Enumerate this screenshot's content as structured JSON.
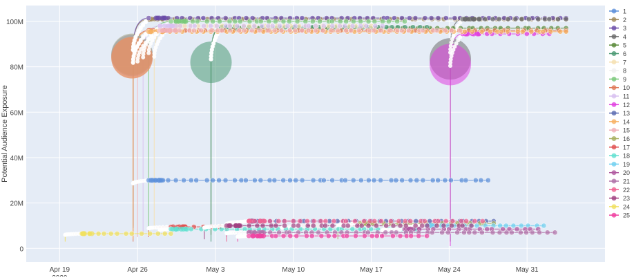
{
  "chart_data": {
    "type": "scatter",
    "title": "",
    "xlabel": "",
    "ylabel": "Potential Audience Exposure",
    "x_ticks": [
      {
        "date": "2020-04-19",
        "label": "Apr 19",
        "sub": "2020"
      },
      {
        "date": "2020-04-26",
        "label": "Apr 26",
        "sub": ""
      },
      {
        "date": "2020-05-03",
        "label": "May 3",
        "sub": ""
      },
      {
        "date": "2020-05-10",
        "label": "May 10",
        "sub": ""
      },
      {
        "date": "2020-05-17",
        "label": "May 17",
        "sub": ""
      },
      {
        "date": "2020-05-24",
        "label": "May 24",
        "sub": ""
      },
      {
        "date": "2020-05-31",
        "label": "May 31",
        "sub": ""
      }
    ],
    "xlim": [
      "2020-04-16",
      "2020-06-07"
    ],
    "ylim": [
      -6000000,
      107000000
    ],
    "y_ticks": [
      {
        "value": 0,
        "label": "0"
      },
      {
        "value": 20000000,
        "label": "20M"
      },
      {
        "value": 40000000,
        "label": "40M"
      },
      {
        "value": 60000000,
        "label": "60M"
      },
      {
        "value": 80000000,
        "label": "80M"
      },
      {
        "value": 100000000,
        "label": "100M"
      }
    ],
    "grid": true,
    "legend_position": "right",
    "plot_bg": "#e5ecf6",
    "grid_color": "#ffffff",
    "bubbles": [
      {
        "series": "3",
        "date": "2020-04-25.5",
        "value": 85000000,
        "size": "large",
        "color": "#8e8ec0"
      },
      {
        "series": "2",
        "date": "2020-04-25.5",
        "value": 85500000,
        "size": "large",
        "color": "#a0a080"
      },
      {
        "series": "14",
        "date": "2020-04-25.5",
        "value": 84000000,
        "size": "large",
        "color": "#f7c07a"
      },
      {
        "series": "10",
        "date": "2020-04-25.5",
        "value": 84000000,
        "size": "large",
        "color": "#e07a5a"
      },
      {
        "series": "6",
        "date": "2020-05-02.6",
        "value": 82000000,
        "size": "large",
        "color": "#4c9a74"
      },
      {
        "series": "4",
        "date": "2020-05-24.1",
        "value": 83500000,
        "size": "large",
        "color": "#707070"
      },
      {
        "series": "12",
        "date": "2020-05-24.1",
        "value": 81000000,
        "size": "large",
        "color": "#e040e0"
      }
    ],
    "series": [
      {
        "name": "1",
        "color": "#5b8fd9",
        "start": [
          "2020-04-25.6",
          21000000
        ],
        "plateau": 30000000,
        "plateau_from": "2020-04-27",
        "end": "2020-05-27.5"
      },
      {
        "name": "2",
        "color": "#a08a5a",
        "start": [
          "2020-04-25.6",
          10000000
        ],
        "plateau": 101000000,
        "plateau_from": "2020-04-27",
        "end": "2020-06-03.5"
      },
      {
        "name": "3",
        "color": "#6a4ca8",
        "start": [
          "2020-04-25.6",
          9000000
        ],
        "plateau": 101500000,
        "plateau_from": "2020-04-27",
        "end": "2020-06-03.5"
      },
      {
        "name": "4",
        "color": "#6a6a6a",
        "start": [
          "2020-05-24.1",
          3000000
        ],
        "plateau": 101000000,
        "plateau_from": "2020-05-25.2",
        "end": "2020-06-03.5"
      },
      {
        "name": "5",
        "color": "#5a8a3a",
        "start": [
          "2020-05-02.6",
          6000000
        ],
        "plateau": 97000000,
        "plateau_from": "2020-05-03.5",
        "end": "2020-06-03.5"
      },
      {
        "name": "6",
        "color": "#4c9a74",
        "start": [
          "2020-05-02.6",
          3000000
        ],
        "plateau": 97500000,
        "plateau_from": "2020-05-03.5",
        "end": "2020-05-22"
      },
      {
        "name": "7",
        "color": "#f5e0b0",
        "start": [
          "2020-04-27.5",
          8000000
        ],
        "plateau": 98000000,
        "plateau_from": "2020-04-29",
        "end": "2020-05-17"
      },
      {
        "name": "8",
        "color": "#f0f0f0",
        "start": [
          "2020-05-09",
          4000000
        ],
        "plateau": 10000000,
        "plateau_from": "2020-05-11",
        "end": "2020-05-23"
      },
      {
        "name": "9",
        "color": "#7ac87a",
        "start": [
          "2020-04-27",
          7000000
        ],
        "plateau": 100000000,
        "plateau_from": "2020-04-29",
        "end": "2020-05-20"
      },
      {
        "name": "10",
        "color": "#e07a5a",
        "start": [
          "2020-04-25.6",
          3000000
        ],
        "plateau": 96000000,
        "plateau_from": "2020-04-27",
        "end": "2020-06-03.5"
      },
      {
        "name": "11",
        "color": "#d8c0f0",
        "start": [
          "2020-04-26.5",
          6000000
        ],
        "plateau": 98000000,
        "plateau_from": "2020-04-28",
        "end": "2020-05-18"
      },
      {
        "name": "12",
        "color": "#e040e0",
        "start": [
          "2020-05-24.1",
          1000000
        ],
        "plateau": 94500000,
        "plateau_from": "2020-05-25.2",
        "end": "2020-06-02"
      },
      {
        "name": "13",
        "color": "#5a6ab0",
        "start": [
          "2020-05-05",
          6000000
        ],
        "plateau": 12000000,
        "plateau_from": "2020-05-06",
        "end": "2020-05-28"
      },
      {
        "name": "14",
        "color": "#f7b060",
        "start": [
          "2020-04-25.6",
          4000000
        ],
        "plateau": 95500000,
        "plateau_from": "2020-04-27",
        "end": "2020-06-03.5"
      },
      {
        "name": "15",
        "color": "#f0b0b8",
        "start": [
          "2020-04-26",
          5000000
        ],
        "plateau": 96000000,
        "plateau_from": "2020-04-28",
        "end": "2020-05-25"
      },
      {
        "name": "16",
        "color": "#a8b060",
        "start": [
          "2020-05-14",
          4000000
        ],
        "plateau": 11000000,
        "plateau_from": "2020-05-16",
        "end": "2020-05-28"
      },
      {
        "name": "17",
        "color": "#e05050",
        "start": [
          "2020-04-27",
          5000000
        ],
        "plateau": 9500000,
        "plateau_from": "2020-04-29",
        "end": "2020-05-04"
      },
      {
        "name": "18",
        "color": "#60e0d0",
        "start": [
          "2020-04-28",
          6000000
        ],
        "plateau": 8500000,
        "plateau_from": "2020-04-29",
        "end": "2020-05-21"
      },
      {
        "name": "19",
        "color": "#70d0f0",
        "start": [
          "2020-05-20",
          5000000
        ],
        "plateau": 10000000,
        "plateau_from": "2020-05-22",
        "end": "2020-06-01.5"
      },
      {
        "name": "20",
        "color": "#b05aa0",
        "start": [
          "2020-05-18",
          5000000
        ],
        "plateau": 8500000,
        "plateau_from": "2020-05-20",
        "end": "2020-06-01"
      },
      {
        "name": "21",
        "color": "#b070a8",
        "start": [
          "2020-05-04",
          5000000
        ],
        "plateau": 7000000,
        "plateau_from": "2020-05-06",
        "end": "2020-06-02.5"
      },
      {
        "name": "22",
        "color": "#f06090",
        "start": [
          "2020-05-04",
          3000000
        ],
        "plateau": 12000000,
        "plateau_from": "2020-05-06",
        "end": "2020-05-27"
      },
      {
        "name": "23",
        "color": "#a04080",
        "start": [
          "2020-05-02",
          4000000
        ],
        "plateau": 10000000,
        "plateau_from": "2020-05-04",
        "end": "2020-05-26"
      },
      {
        "name": "24",
        "color": "#f0e060",
        "start": [
          "2020-04-19.5",
          3000000
        ],
        "plateau": 6500000,
        "plateau_from": "2020-04-21",
        "end": "2020-04-29"
      },
      {
        "name": "25",
        "color": "#f040a0",
        "start": [
          "2020-05-05",
          3000000
        ],
        "plateau": 5500000,
        "plateau_from": "2020-05-06",
        "end": "2020-05-22"
      }
    ]
  }
}
